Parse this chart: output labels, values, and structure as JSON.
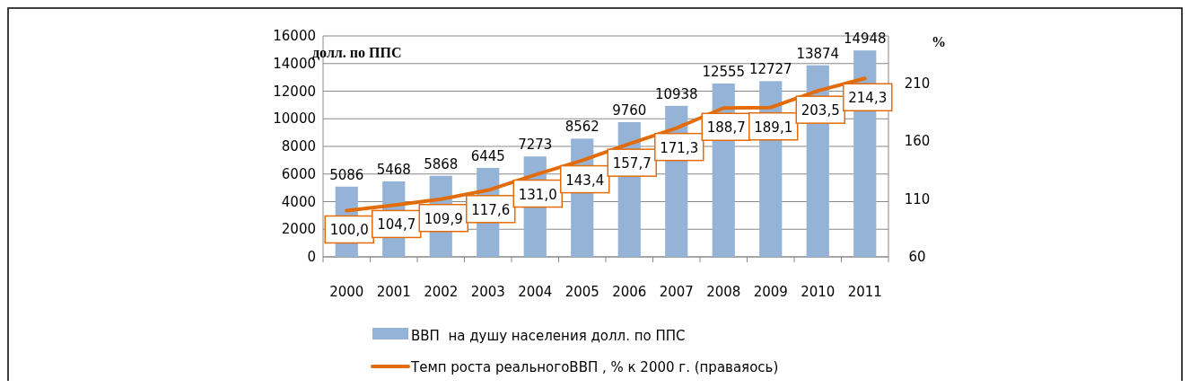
{
  "chart_data": {
    "type": "bar",
    "categories": [
      "2000",
      "2001",
      "2002",
      "2003",
      "2004",
      "2005",
      "2006",
      "2007",
      "2008",
      "2009",
      "2010",
      "2011"
    ],
    "series": [
      {
        "name": "ВВП  на душу населения долл. по ППС",
        "color": "#95b3d7",
        "values": [
          5086,
          5468,
          5868,
          6445,
          7273,
          8562,
          9760,
          10938,
          12555,
          12727,
          13874,
          14948
        ],
        "value_labels": [
          "5086",
          "5468",
          "5868",
          "6445",
          "7273",
          "8562",
          "9760",
          "10938",
          "12555",
          "12727",
          "13874",
          "14948"
        ]
      },
      {
        "name": "Темп роста реальногоВВП , % к 2000 г. (праваяось)",
        "type": "line",
        "axis": "y2",
        "color": "#e36c0a",
        "values": [
          100.0,
          104.7,
          109.9,
          117.6,
          131.0,
          143.4,
          157.7,
          171.3,
          188.7,
          189.1,
          203.5,
          214.3
        ],
        "value_labels": [
          "100,0",
          "104,7",
          "109,9",
          "117,6",
          "131,0",
          "143,4",
          "157,7",
          "171,3",
          "188,7",
          "189,1",
          "203,5",
          "214,3"
        ]
      }
    ],
    "ylabel": "долл. по ППС",
    "y2label": "%",
    "ylim": [
      0,
      16000
    ],
    "yticks": [
      0,
      2000,
      4000,
      6000,
      8000,
      10000,
      12000,
      14000,
      16000
    ],
    "y2lim": [
      60,
      251
    ],
    "y2ticks": [
      60,
      110,
      160,
      210
    ],
    "grid": "y",
    "legend": "bottom",
    "marker": "none",
    "line_style": "solid"
  }
}
